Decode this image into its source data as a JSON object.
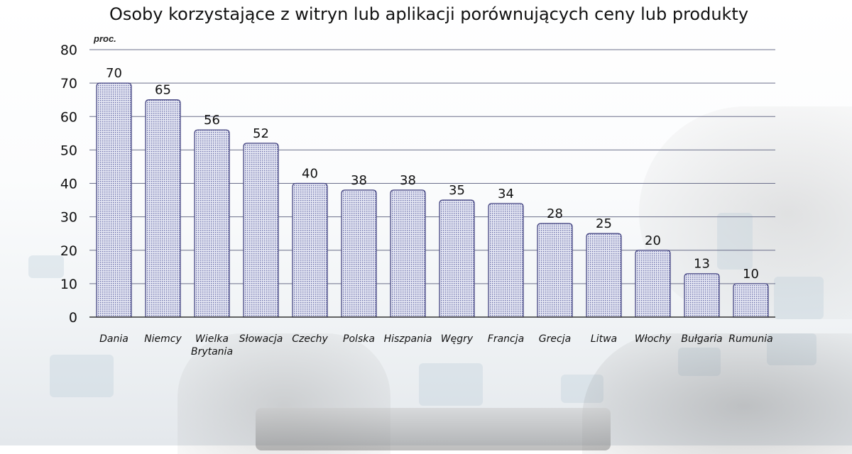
{
  "chart_data": {
    "type": "bar",
    "title": "Osoby korzystające z witryn lub aplikacji porównujących ceny lub produkty",
    "ylabel": "proc.",
    "ylim": [
      0,
      80
    ],
    "yticks": [
      0,
      10,
      20,
      30,
      40,
      50,
      60,
      70,
      80
    ],
    "grid": true,
    "categories": [
      [
        "Dania"
      ],
      [
        "Niemcy"
      ],
      [
        "Wielka",
        "Brytania"
      ],
      [
        "Słowacja"
      ],
      [
        "Czechy"
      ],
      [
        "Polska"
      ],
      [
        "Hiszpania"
      ],
      [
        "Węgry"
      ],
      [
        "Francja"
      ],
      [
        "Grecja"
      ],
      [
        "Litwa"
      ],
      [
        "Włochy"
      ],
      [
        "Bułgaria"
      ],
      [
        "Rumunia"
      ]
    ],
    "values": [
      70,
      65,
      56,
      52,
      40,
      38,
      38,
      35,
      34,
      28,
      25,
      20,
      13,
      10
    ],
    "colors": {
      "bar_fill": "#e6e8f4",
      "bar_dots": "#6a6ea8",
      "bar_stroke": "#4a4a85",
      "grid": "#6b6f8a"
    }
  }
}
